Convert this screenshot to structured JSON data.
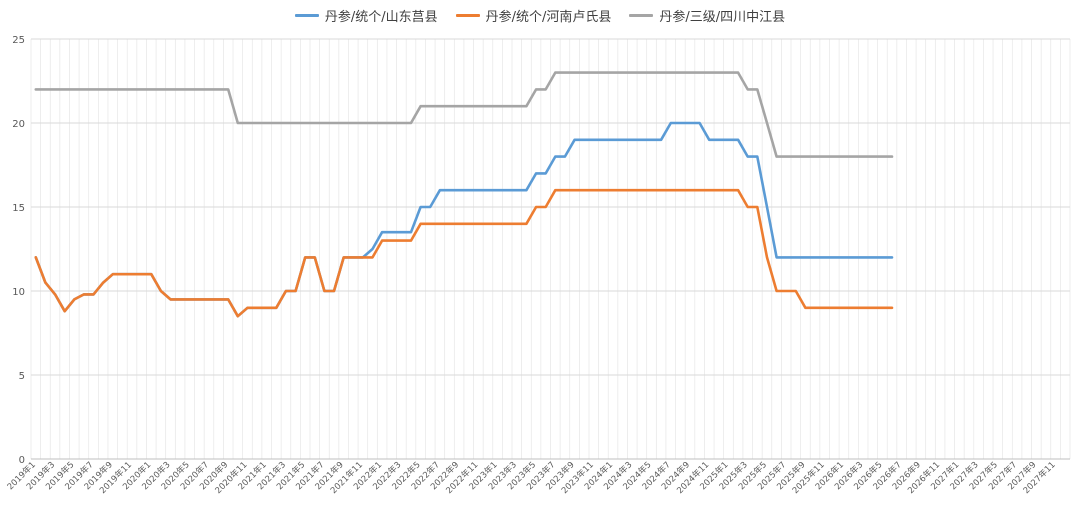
{
  "chart_data": {
    "type": "line",
    "title": "",
    "xlabel": "",
    "ylabel": "",
    "ylim": [
      0,
      25
    ],
    "y_ticks": [
      0,
      5,
      10,
      15,
      20,
      25
    ],
    "grid": true,
    "legend_position": "top",
    "x_start": "2019-01",
    "x_end": "2027-12",
    "x_labels": [
      "2019年1",
      "2019年3",
      "2019年5",
      "2019年7",
      "2019年9",
      "2019年11",
      "2020年1",
      "2020年3",
      "2020年5",
      "2020年7",
      "2020年9",
      "2020年11",
      "2021年1",
      "2021年3",
      "2021年5",
      "2021年7",
      "2021年9",
      "2021年11",
      "2022年1",
      "2022年3",
      "2022年5",
      "2022年7",
      "2022年9",
      "2022年11",
      "2023年1",
      "2023年3",
      "2023年5",
      "2023年7",
      "2023年9",
      "2023年11",
      "2024年1",
      "2024年3",
      "2024年5",
      "2024年7",
      "2024年9",
      "2024年11",
      "2025年1",
      "2025年3",
      "2025年5",
      "2025年7",
      "2025年9",
      "2025年11",
      "2026年1",
      "2026年3",
      "2026年5",
      "2026年7",
      "2026年9",
      "2026年11",
      "2027年1",
      "2027年3",
      "2027年5",
      "2027年7",
      "2027年9",
      "2027年11"
    ],
    "series": [
      {
        "name": "丹参/统个/山东莒县",
        "color": "#5B9BD5",
        "values": [
          12,
          10.5,
          9.8,
          8.8,
          9.5,
          9.8,
          9.8,
          10.5,
          11,
          11,
          11,
          11,
          11,
          10,
          9.5,
          9.5,
          9.5,
          9.5,
          9.5,
          9.5,
          9.5,
          8.5,
          9,
          9,
          9,
          9,
          10,
          10,
          12,
          12,
          10,
          10,
          12,
          12,
          12,
          12.5,
          13.5,
          13.5,
          13.5,
          13.5,
          15,
          15,
          16,
          16,
          16,
          16,
          16,
          16,
          16,
          16,
          16,
          16,
          17,
          17,
          18,
          18,
          19,
          19,
          19,
          19,
          19,
          19,
          19,
          19,
          19,
          19,
          20,
          20,
          20,
          20,
          19,
          19,
          19,
          19,
          18,
          18,
          15,
          12,
          12,
          12,
          12,
          12,
          12,
          12,
          12,
          12,
          12,
          12,
          12,
          12
        ]
      },
      {
        "name": "丹参/统个/河南卢氏县",
        "color": "#ED7D31",
        "values": [
          12,
          10.5,
          9.8,
          8.8,
          9.5,
          9.8,
          9.8,
          10.5,
          11,
          11,
          11,
          11,
          11,
          10,
          9.5,
          9.5,
          9.5,
          9.5,
          9.5,
          9.5,
          9.5,
          8.5,
          9,
          9,
          9,
          9,
          10,
          10,
          12,
          12,
          10,
          10,
          12,
          12,
          12,
          12,
          13,
          13,
          13,
          13,
          14,
          14,
          14,
          14,
          14,
          14,
          14,
          14,
          14,
          14,
          14,
          14,
          15,
          15,
          16,
          16,
          16,
          16,
          16,
          16,
          16,
          16,
          16,
          16,
          16,
          16,
          16,
          16,
          16,
          16,
          16,
          16,
          16,
          16,
          15,
          15,
          12,
          10,
          10,
          10,
          9,
          9,
          9,
          9,
          9,
          9,
          9,
          9,
          9,
          9
        ]
      },
      {
        "name": "丹参/三级/四川中江县",
        "color": "#A5A5A5",
        "values": [
          22,
          22,
          22,
          22,
          22,
          22,
          22,
          22,
          22,
          22,
          22,
          22,
          22,
          22,
          22,
          22,
          22,
          22,
          22,
          22,
          22,
          20,
          20,
          20,
          20,
          20,
          20,
          20,
          20,
          20,
          20,
          20,
          20,
          20,
          20,
          20,
          20,
          20,
          20,
          20,
          21,
          21,
          21,
          21,
          21,
          21,
          21,
          21,
          21,
          21,
          21,
          21,
          22,
          22,
          23,
          23,
          23,
          23,
          23,
          23,
          23,
          23,
          23,
          23,
          23,
          23,
          23,
          23,
          23,
          23,
          23,
          23,
          23,
          23,
          22,
          22,
          20,
          18,
          18,
          18,
          18,
          18,
          18,
          18,
          18,
          18,
          18,
          18,
          18,
          18
        ]
      }
    ]
  }
}
